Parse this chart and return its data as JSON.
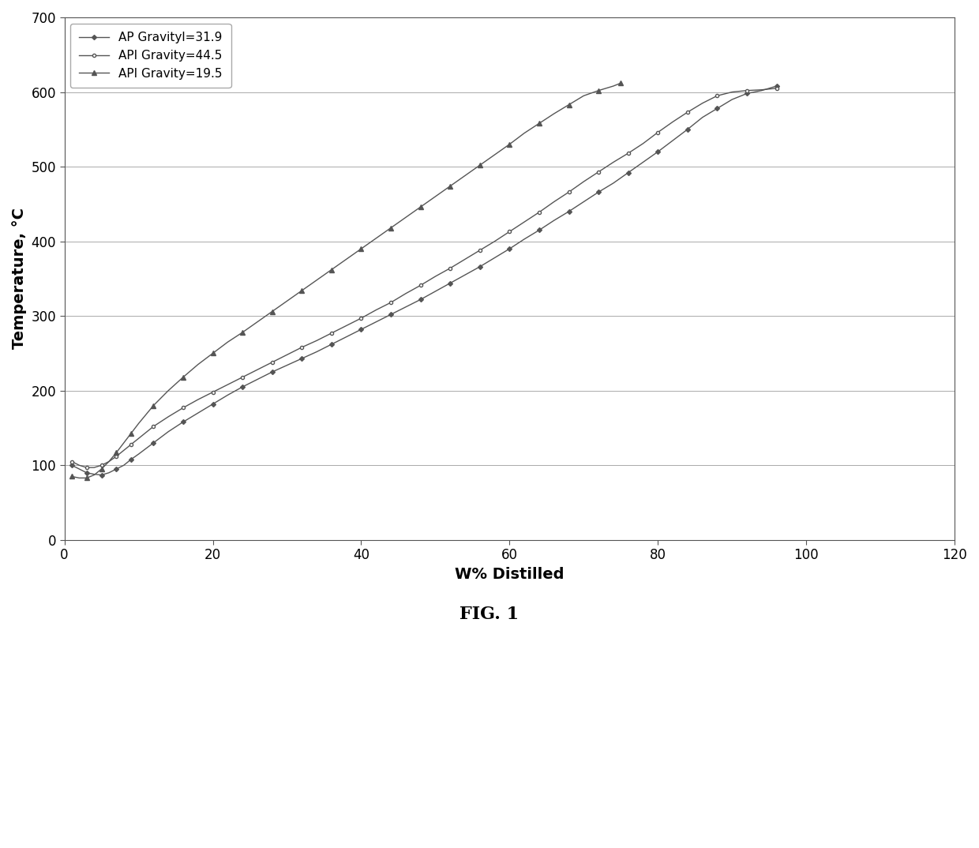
{
  "title": "",
  "xlabel": "W% Distilled",
  "ylabel": "Temperature, °C",
  "fig_caption": "FIG. 1",
  "xlim": [
    0,
    120
  ],
  "ylim": [
    0,
    700
  ],
  "yticks": [
    0,
    100,
    200,
    300,
    400,
    500,
    600,
    700
  ],
  "xticks": [
    0,
    20,
    40,
    60,
    80,
    100,
    120
  ],
  "background_color": "#ffffff",
  "grid_color": "#aaaaaa",
  "curves": [
    {
      "label": "AP Gravityl=31.9",
      "color": "#555555",
      "marker": "D",
      "markersize": 3,
      "x": [
        1,
        2,
        3,
        4,
        5,
        6,
        7,
        8,
        9,
        10,
        12,
        14,
        16,
        18,
        20,
        22,
        24,
        26,
        28,
        30,
        32,
        34,
        36,
        38,
        40,
        42,
        44,
        46,
        48,
        50,
        52,
        54,
        56,
        58,
        60,
        62,
        64,
        66,
        68,
        70,
        72,
        74,
        76,
        78,
        80,
        82,
        84,
        86,
        88,
        90,
        92,
        94,
        96
      ],
      "y": [
        100,
        95,
        90,
        88,
        87,
        90,
        95,
        100,
        108,
        115,
        130,
        145,
        158,
        170,
        182,
        194,
        205,
        215,
        225,
        234,
        243,
        252,
        262,
        272,
        282,
        292,
        302,
        312,
        322,
        333,
        344,
        355,
        366,
        378,
        390,
        403,
        415,
        428,
        440,
        453,
        466,
        478,
        492,
        506,
        520,
        535,
        550,
        566,
        578,
        590,
        598,
        602,
        608
      ]
    },
    {
      "label": "API Gravity=44.5",
      "color": "#555555",
      "marker": "o",
      "markersize": 3,
      "x": [
        1,
        2,
        3,
        4,
        5,
        6,
        7,
        8,
        9,
        10,
        12,
        14,
        16,
        18,
        20,
        22,
        24,
        26,
        28,
        30,
        32,
        34,
        36,
        38,
        40,
        42,
        44,
        46,
        48,
        50,
        52,
        54,
        56,
        58,
        60,
        62,
        64,
        66,
        68,
        70,
        72,
        74,
        76,
        78,
        80,
        82,
        84,
        86,
        88,
        90,
        92,
        94,
        96
      ],
      "y": [
        105,
        100,
        97,
        97,
        100,
        105,
        112,
        120,
        128,
        136,
        152,
        165,
        177,
        188,
        198,
        208,
        218,
        228,
        238,
        248,
        258,
        267,
        277,
        287,
        297,
        308,
        318,
        330,
        341,
        353,
        364,
        376,
        388,
        400,
        413,
        426,
        439,
        453,
        466,
        480,
        493,
        506,
        518,
        531,
        546,
        560,
        573,
        585,
        595,
        600,
        602,
        603,
        605
      ]
    },
    {
      "label": "API Gravity=19.5",
      "color": "#555555",
      "marker": "^",
      "markersize": 4,
      "x": [
        1,
        2,
        3,
        4,
        5,
        6,
        7,
        8,
        9,
        10,
        12,
        14,
        16,
        18,
        20,
        22,
        24,
        26,
        28,
        30,
        32,
        34,
        36,
        38,
        40,
        42,
        44,
        46,
        48,
        50,
        52,
        54,
        56,
        58,
        60,
        62,
        64,
        66,
        68,
        70,
        72,
        74,
        75
      ],
      "y": [
        85,
        83,
        83,
        87,
        95,
        105,
        117,
        130,
        143,
        156,
        180,
        200,
        218,
        235,
        250,
        265,
        278,
        292,
        306,
        320,
        334,
        348,
        362,
        376,
        390,
        404,
        418,
        432,
        446,
        460,
        474,
        488,
        502,
        516,
        530,
        545,
        558,
        571,
        583,
        595,
        602,
        608,
        612
      ]
    }
  ]
}
